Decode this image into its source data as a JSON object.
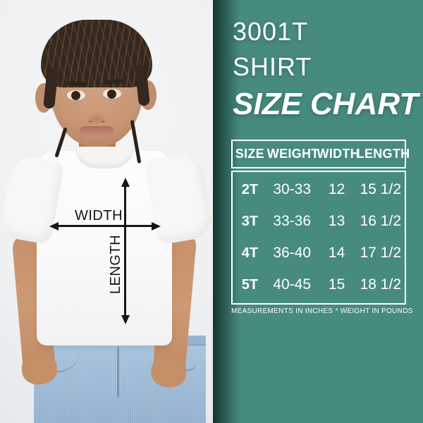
{
  "panel": {
    "bg_color": "#478b7e",
    "text_color": "#ffffff",
    "title_lines": [
      "3001T",
      "SHIRT",
      "SIZE CHART"
    ],
    "table": {
      "headers": [
        "SIZE",
        "WEIGHT",
        "WIDTH",
        "LENGTH"
      ],
      "rows": [
        [
          "2T",
          "30-33",
          "12",
          "15 1/2"
        ],
        [
          "3T",
          "33-36",
          "13",
          "16 1/2"
        ],
        [
          "4T",
          "36-40",
          "14",
          "17 1/2"
        ],
        [
          "5T",
          "40-45",
          "15",
          "18 1/2"
        ]
      ],
      "footnote": "MEASUREMENTS IN INCHES * WEIGHT IN POUNDS"
    }
  },
  "photo": {
    "description_labels": {
      "width": "WIDTH",
      "length": "LENGTH"
    }
  },
  "chart_data": {
    "type": "table",
    "title": "3001T SHIRT SIZE CHART",
    "columns": [
      "SIZE",
      "WEIGHT",
      "WIDTH",
      "LENGTH"
    ],
    "rows": [
      {
        "size": "2T",
        "weight": "30-33",
        "width": 12,
        "length": 15.5
      },
      {
        "size": "3T",
        "weight": "33-36",
        "width": 13,
        "length": 16.5
      },
      {
        "size": "4T",
        "weight": "36-40",
        "width": 14,
        "length": 17.5
      },
      {
        "size": "5T",
        "weight": "40-45",
        "width": 15,
        "length": 18.5
      }
    ],
    "note": "MEASUREMENTS IN INCHES * WEIGHT IN POUNDS"
  }
}
